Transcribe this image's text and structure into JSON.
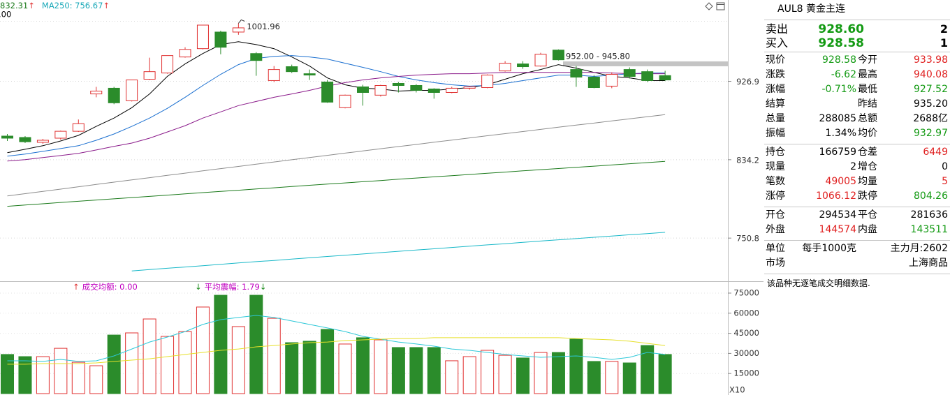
{
  "chart_data": [
    {
      "type": "candlestick",
      "legend": [
        {
          "text": "832.31",
          "arrow": "↑",
          "color": "#1b7a1b"
        },
        {
          "text": "MA250: 756.67",
          "arrow": "↑",
          "color": "#18a8b8"
        }
      ],
      "legend_sub": ".00",
      "arrow_color": "#e03030",
      "ylim": [
        710.5,
        1033.9
      ],
      "log_scale": true,
      "yticks": [
        926.9,
        834.2,
        750.8
      ],
      "grid": true,
      "up_color": "#e03030",
      "down_color": "#2b8c2b",
      "open": [
        861.1,
        859.5,
        853.9,
        858.7,
        866.7,
        911.3,
        918.3,
        903.0,
        929.5,
        937.3,
        957.7,
        968.5,
        990.3,
        990.3,
        962.1,
        927.8,
        945.3,
        936.4,
        926.0,
        894.6,
        920.0,
        909.8,
        924.3,
        921.7,
        917.4,
        913.1,
        918.3,
        919.1,
        939.9,
        948.8,
        946.1,
        966.6,
        941.7,
        932.1,
        920.9,
        941.7,
        939.0,
        933.98
      ],
      "high": [
        863.5,
        861.1,
        857.9,
        867.5,
        880.5,
        920.0,
        920.0,
        928.6,
        956.8,
        959.5,
        970.3,
        999.6,
        992.1,
        1001.96,
        963.9,
        946.1,
        947.9,
        941.7,
        928.6,
        910.5,
        922.6,
        922.6,
        926.0,
        923.4,
        918.3,
        920.0,
        920.9,
        935.6,
        952.3,
        952.3,
        963.1,
        967.5,
        946.1,
        934.7,
        938.1,
        944.4,
        941.7,
        940.08
      ],
      "low": [
        855.5,
        853.1,
        852.2,
        857.0,
        865.9,
        907.2,
        898.8,
        902.1,
        928.6,
        936.4,
        956.8,
        967.5,
        961.2,
        986.7,
        933.8,
        926.0,
        937.3,
        928.6,
        900.5,
        893.8,
        897.1,
        908.1,
        913.1,
        913.1,
        905.5,
        912.2,
        916.5,
        918.3,
        939.0,
        942.6,
        945.3,
        953.2,
        920.0,
        918.3,
        918.3,
        930.4,
        926.0,
        927.52
      ],
      "close": [
        858.7,
        854.6,
        856.3,
        866.7,
        875.6,
        914.8,
        900.5,
        928.6,
        939.0,
        959.5,
        967.5,
        999.6,
        970.3,
        995.9,
        953.2,
        941.7,
        939.0,
        934.7,
        901.3,
        909.8,
        913.1,
        921.7,
        921.7,
        915.7,
        913.1,
        918.3,
        920.0,
        934.7,
        949.7,
        945.3,
        961.2,
        954.1,
        932.1,
        919.1,
        935.6,
        933.0,
        927.8,
        928.58
      ],
      "lines": [
        {
          "color": "#000000",
          "values": [
            842.1,
            846.0,
            850.0,
            855.5,
            861.9,
            872.4,
            882.2,
            894.6,
            911.3,
            933.0,
            948.8,
            962.1,
            973.8,
            977.5,
            973.8,
            968.5,
            957.7,
            946.1,
            931.2,
            922.6,
            918.3,
            917.4,
            914.8,
            915.7,
            915.7,
            917.4,
            919.1,
            922.6,
            929.5,
            936.4,
            941.7,
            947.9,
            943.5,
            938.1,
            933.0,
            931.2,
            927.8,
            927.8
          ]
        },
        {
          "color": "#1a6fd0",
          "values": [
            838.2,
            840.5,
            843.6,
            846.8,
            850.0,
            856.3,
            863.5,
            872.4,
            882.2,
            893.8,
            907.2,
            921.7,
            935.6,
            947.9,
            955.8,
            958.5,
            959.5,
            957.7,
            955.0,
            949.7,
            944.4,
            939.0,
            933.0,
            928.6,
            925.2,
            922.6,
            920.9,
            921.7,
            924.3,
            927.8,
            931.2,
            934.7,
            934.7,
            933.0,
            934.7,
            936.4,
            937.3,
            937.3
          ]
        },
        {
          "color": "#8a1a8a",
          "values": [
            832.7,
            834.3,
            836.6,
            838.9,
            841.3,
            845.2,
            849.2,
            853.1,
            858.7,
            865.9,
            873.2,
            882.2,
            889.6,
            897.1,
            902.1,
            907.2,
            911.3,
            915.7,
            920.9,
            925.2,
            928.6,
            931.2,
            933.0,
            934.7,
            935.6,
            936.4,
            936.4,
            937.3,
            938.1,
            938.1,
            938.1,
            938.1,
            938.1,
            938.1,
            937.3,
            936.4,
            936.4,
            936.4
          ]
        },
        {
          "color": "#8c8c8c",
          "values": [
            794.5,
            797.0,
            799.5,
            801.9,
            804.4,
            806.9,
            809.4,
            811.9,
            814.3,
            816.8,
            819.3,
            821.8,
            824.3,
            826.7,
            829.2,
            831.7,
            834.2,
            836.7,
            839.1,
            841.6,
            844.1,
            846.6,
            849.1,
            851.5,
            854.0,
            856.5,
            859.0,
            861.5,
            863.9,
            866.4,
            868.9,
            871.4,
            873.9,
            876.3,
            878.8,
            881.3,
            883.8,
            886.3
          ]
        },
        {
          "color": "#1b7a1b",
          "values": [
            783.6,
            784.9,
            786.2,
            787.6,
            788.9,
            790.2,
            791.5,
            792.8,
            794.1,
            795.4,
            796.8,
            798.1,
            799.4,
            800.7,
            802.0,
            803.3,
            804.7,
            806.0,
            807.3,
            808.6,
            809.9,
            811.2,
            812.6,
            813.9,
            815.2,
            816.5,
            817.8,
            819.1,
            820.4,
            821.8,
            823.1,
            824.4,
            825.7,
            827.0,
            828.3,
            829.7,
            831.0,
            832.31
          ]
        },
        {
          "color": "#18b8c8",
          "values": [
            null,
            null,
            null,
            null,
            null,
            null,
            null,
            718.4,
            719.7,
            721.0,
            722.2,
            723.5,
            724.8,
            726.1,
            727.4,
            728.6,
            729.9,
            731.2,
            732.5,
            733.7,
            735.0,
            736.3,
            737.6,
            738.9,
            740.1,
            741.4,
            742.7,
            744.0,
            745.2,
            746.5,
            747.8,
            749.1,
            750.3,
            751.6,
            752.9,
            754.2,
            755.4,
            756.67
          ]
        }
      ],
      "high_label": "1001.96",
      "range_band": {
        "values": [
          952,
          945.8
        ],
        "label": "952.00 - 945.80",
        "color": "#c4c4c4"
      }
    },
    {
      "type": "bar",
      "header": [
        {
          "arrow": "↑",
          "arrow_color": "#e03030",
          "text": "成交均额: 0.00",
          "color": "#c000c0"
        },
        {
          "arrow": "↓",
          "arrow_color": "#1a8a1a",
          "text": "平均震幅: 1.79",
          "arrow2": "↓",
          "color": "#c000c0"
        }
      ],
      "ylim": [
        0,
        82800
      ],
      "yticks": [
        75000,
        60000,
        45000,
        30000,
        15000
      ],
      "grid": true,
      "multiplier": "X10",
      "values": [
        29200,
        27600,
        27600,
        33800,
        23400,
        20800,
        43700,
        45300,
        55700,
        42700,
        46300,
        64600,
        73400,
        50000,
        73400,
        56200,
        38000,
        39100,
        47900,
        37000,
        41700,
        40100,
        34400,
        34400,
        34400,
        24500,
        27600,
        32300,
        28600,
        26600,
        30700,
        30700,
        40600,
        24000,
        24000,
        22900,
        35900,
        29200
      ],
      "lines": [
        {
          "color": "#2cc8d8",
          "values": [
            24500,
            24500,
            24000,
            25500,
            24000,
            24500,
            28100,
            33300,
            38500,
            42200,
            46300,
            51600,
            55200,
            56800,
            58300,
            56800,
            54200,
            51600,
            49000,
            46300,
            42700,
            40600,
            38500,
            37000,
            35400,
            33300,
            32300,
            30700,
            29200,
            28100,
            27100,
            27600,
            28100,
            27100,
            25500,
            27100,
            30700,
            29200
          ]
        },
        {
          "color": "#e6e02a",
          "values": [
            21900,
            21900,
            22400,
            22400,
            22400,
            22900,
            24000,
            25000,
            26000,
            27600,
            29200,
            30700,
            32300,
            33300,
            34900,
            35900,
            37000,
            38000,
            38500,
            39600,
            40100,
            40600,
            41100,
            41100,
            41700,
            41700,
            41700,
            41700,
            41700,
            41700,
            41700,
            41700,
            41100,
            40600,
            40100,
            39100,
            37500,
            35900
          ]
        }
      ]
    }
  ],
  "quote": {
    "title": "AUL8 黄金主连",
    "palette": {
      "up": "#e02020",
      "down": "#139a13",
      "flat": "#000000"
    },
    "bid_ask": [
      {
        "label": "卖出",
        "price": "928.60",
        "volume": "2",
        "color": "down"
      },
      {
        "label": "买入",
        "price": "928.58",
        "volume": "1",
        "color": "down"
      }
    ],
    "sections": [
      [
        {
          "l1": "现价",
          "v1": "928.58",
          "c1": "down",
          "l2": "今开",
          "v2": "933.98",
          "c2": "up"
        },
        {
          "l1": "涨跌",
          "v1": "-6.62",
          "c1": "down",
          "l2": "最高",
          "v2": "940.08",
          "c2": "up"
        },
        {
          "l1": "涨幅",
          "v1": "-0.71%",
          "c1": "down",
          "l2": "最低",
          "v2": "927.52",
          "c2": "down"
        },
        {
          "l1": "结算",
          "l2": "昨结",
          "v2": "935.20",
          "c2": "flat"
        },
        {
          "l1": "总量",
          "v1": "288085",
          "c1": "flat",
          "l2": "总额",
          "v2": "2688亿",
          "c2": "flat"
        },
        {
          "l1": "振幅",
          "v1": "1.34%",
          "c1": "flat",
          "l2": "均价",
          "v2": "932.97",
          "c2": "down"
        }
      ],
      [
        {
          "l1": "持仓",
          "v1": "166759",
          "c1": "flat",
          "l2": "仓差",
          "v2": "6449",
          "c2": "up"
        },
        {
          "l1": "现量",
          "v1": "2",
          "c1": "flat",
          "l2": "增仓",
          "v2": "0",
          "c2": "flat"
        },
        {
          "l1": "笔数",
          "v1": "49005",
          "c1": "up",
          "l2": "均量",
          "v2": "5",
          "c2": "up"
        },
        {
          "l1": "涨停",
          "v1": "1066.12",
          "c1": "up",
          "l2": "跌停",
          "v2": "804.26",
          "c2": "down"
        }
      ],
      [
        {
          "l1": "开仓",
          "v1": "294534",
          "c1": "flat",
          "l2": "平仓",
          "v2": "281636",
          "c2": "flat"
        },
        {
          "l1": "外盘",
          "v1": "144574",
          "c1": "up",
          "l2": "内盘",
          "v2": "143511",
          "c2": "down"
        }
      ],
      [
        {
          "l1": "单位",
          "v1": "每手1000克",
          "c1": "flat",
          "v2": "主力月:2602",
          "c2": "flat"
        },
        {
          "l1": "市场",
          "v2": "上海商品",
          "c2": "flat"
        }
      ]
    ],
    "note": "该品种无逐笔成交明细数据."
  }
}
